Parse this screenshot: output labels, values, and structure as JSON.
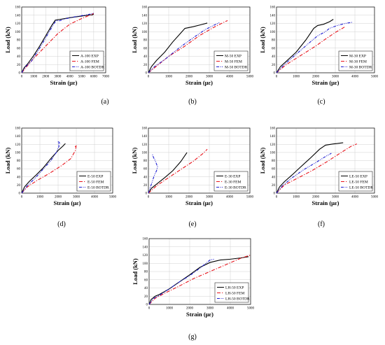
{
  "series_styles": {
    "EXP": {
      "color": "#000000",
      "dash": ""
    },
    "FEM": {
      "color": "#e8141c",
      "dash": "5,2,1.2,2"
    },
    "BOTDR": {
      "color": "#1e1ed2",
      "dash": "4,1.5,1,1.5,1,1.5"
    }
  },
  "chart_data": [
    {
      "type": "line",
      "panel_label": "(a)",
      "xlabel": "Strain (με)",
      "ylabel": "Load (kN)",
      "xlim": [
        0,
        7000
      ],
      "ylim": [
        0,
        160
      ],
      "xticks": [
        "0",
        "1000",
        "2000",
        "3000",
        "4000",
        "5000",
        "6000",
        "7000"
      ],
      "yticks": [
        "0",
        "20",
        "40",
        "60",
        "80",
        "100",
        "120",
        "140",
        "160"
      ],
      "series": [
        {
          "name": "A-100 EXP",
          "style": "EXP",
          "points": [
            [
              0,
              0
            ],
            [
              200,
              12
            ],
            [
              500,
              22
            ],
            [
              1000,
              42
            ],
            [
              1500,
              65
            ],
            [
              2000,
              90
            ],
            [
              2500,
              115
            ],
            [
              2800,
              128
            ],
            [
              3200,
              130
            ],
            [
              4000,
              134
            ],
            [
              5000,
              138
            ],
            [
              5500,
              140
            ],
            [
              5900,
              141
            ],
            [
              6000,
              143
            ]
          ]
        },
        {
          "name": "A-100 FEM",
          "style": "FEM",
          "points": [
            [
              0,
              0
            ],
            [
              500,
              18
            ],
            [
              1000,
              35
            ],
            [
              2000,
              65
            ],
            [
              3000,
              95
            ],
            [
              4000,
              118
            ],
            [
              5000,
              132
            ],
            [
              5500,
              138
            ],
            [
              6000,
              144
            ]
          ]
        },
        {
          "name": "A-100 BOTDR",
          "style": "BOTDR",
          "points": [
            [
              0,
              0
            ],
            [
              300,
              14
            ],
            [
              800,
              28
            ],
            [
              1500,
              60
            ],
            [
              2200,
              95
            ],
            [
              2700,
              120
            ],
            [
              2900,
              128
            ],
            [
              3100,
              126
            ],
            [
              3500,
              130
            ],
            [
              4200,
              135
            ],
            [
              5000,
              139
            ],
            [
              5600,
              142
            ],
            [
              6000,
              145
            ]
          ]
        }
      ]
    },
    {
      "type": "line",
      "panel_label": "(b)",
      "xlabel": "Strain (με)",
      "ylabel": "Load (kN)",
      "xlim": [
        0,
        5000
      ],
      "ylim": [
        0,
        160
      ],
      "xticks": [
        "0",
        "1000",
        "2000",
        "3000",
        "4000",
        "5000"
      ],
      "yticks": [
        "0",
        "20",
        "40",
        "60",
        "80",
        "100",
        "120",
        "140",
        "160"
      ],
      "series": [
        {
          "name": "M-50 EXP",
          "style": "EXP",
          "points": [
            [
              0,
              0
            ],
            [
              150,
              15
            ],
            [
              400,
              30
            ],
            [
              800,
              50
            ],
            [
              1200,
              75
            ],
            [
              1600,
              97
            ],
            [
              1800,
              108
            ],
            [
              2200,
              112
            ],
            [
              2600,
              117
            ],
            [
              2900,
              121
            ]
          ]
        },
        {
          "name": "M-50 FEM",
          "style": "FEM",
          "points": [
            [
              0,
              0
            ],
            [
              500,
              20
            ],
            [
              1000,
              40
            ],
            [
              1800,
              65
            ],
            [
              2500,
              90
            ],
            [
              3200,
              110
            ],
            [
              3600,
              120
            ],
            [
              3900,
              127
            ]
          ]
        },
        {
          "name": "M-50 BOTDR",
          "style": "BOTDR",
          "points": [
            [
              0,
              0
            ],
            [
              300,
              15
            ],
            [
              800,
              32
            ],
            [
              1500,
              60
            ],
            [
              2200,
              85
            ],
            [
              2800,
              105
            ],
            [
              3200,
              115
            ],
            [
              3500,
              122
            ]
          ]
        }
      ]
    },
    {
      "type": "line",
      "panel_label": "(c)",
      "xlabel": "Strain (με)",
      "ylabel": "Load (kN)",
      "xlim": [
        0,
        5000
      ],
      "ylim": [
        0,
        160
      ],
      "xticks": [
        "0",
        "1000",
        "2000",
        "3000",
        "4000",
        "5000"
      ],
      "yticks": [
        "0",
        "20",
        "40",
        "60",
        "80",
        "100",
        "120",
        "140",
        "160"
      ],
      "series": [
        {
          "name": "M-30 EXP",
          "style": "EXP",
          "points": [
            [
              0,
              0
            ],
            [
              200,
              15
            ],
            [
              500,
              28
            ],
            [
              1000,
              50
            ],
            [
              1500,
              80
            ],
            [
              1900,
              108
            ],
            [
              2100,
              115
            ],
            [
              2400,
              118
            ],
            [
              2700,
              124
            ],
            [
              2900,
              130
            ]
          ]
        },
        {
          "name": "M-30 FEM",
          "style": "FEM",
          "points": [
            [
              0,
              0
            ],
            [
              500,
              20
            ],
            [
              1000,
              35
            ],
            [
              1500,
              50
            ],
            [
              2000,
              65
            ],
            [
              2500,
              82
            ],
            [
              3000,
              98
            ],
            [
              3500,
              112
            ]
          ]
        },
        {
          "name": "M-30 BOTDR",
          "style": "BOTDR",
          "points": [
            [
              0,
              0
            ],
            [
              400,
              20
            ],
            [
              1000,
              45
            ],
            [
              1600,
              70
            ],
            [
              2100,
              90
            ],
            [
              2500,
              100
            ],
            [
              2700,
              108
            ],
            [
              3100,
              115
            ],
            [
              3500,
              120
            ],
            [
              3900,
              123
            ]
          ]
        }
      ]
    },
    {
      "type": "line",
      "panel_label": "(d)",
      "xlabel": "Strain (με)",
      "ylabel": "Load (kN)",
      "xlim": [
        0,
        5000
      ],
      "ylim": [
        0,
        160
      ],
      "xticks": [
        "0",
        "1000",
        "2000",
        "3000",
        "4000",
        "5000"
      ],
      "yticks": [
        "0",
        "20",
        "40",
        "60",
        "80",
        "100",
        "120",
        "140",
        "160"
      ],
      "series": [
        {
          "name": "E-50 EXP",
          "style": "EXP",
          "points": [
            [
              0,
              0
            ],
            [
              150,
              15
            ],
            [
              400,
              28
            ],
            [
              800,
              45
            ],
            [
              1200,
              63
            ],
            [
              1600,
              85
            ],
            [
              2000,
              105
            ],
            [
              2250,
              115
            ],
            [
              2400,
              122
            ]
          ]
        },
        {
          "name": "E-50 FEM",
          "style": "FEM",
          "points": [
            [
              0,
              0
            ],
            [
              300,
              15
            ],
            [
              800,
              30
            ],
            [
              1500,
              48
            ],
            [
              2200,
              68
            ],
            [
              2700,
              85
            ],
            [
              2950,
              105
            ],
            [
              3000,
              118
            ],
            [
              2900,
              112
            ]
          ]
        },
        {
          "name": "E-50 BOTDR",
          "style": "BOTDR",
          "points": [
            [
              0,
              0
            ],
            [
              300,
              18
            ],
            [
              700,
              35
            ],
            [
              1200,
              60
            ],
            [
              1600,
              80
            ],
            [
              1900,
              100
            ],
            [
              2050,
              115
            ],
            [
              2000,
              128
            ],
            [
              2100,
              122
            ]
          ]
        }
      ]
    },
    {
      "type": "line",
      "panel_label": "(e)",
      "xlabel": "Strain (με)",
      "ylabel": "Load (kN)",
      "xlim": [
        0,
        5000
      ],
      "ylim": [
        0,
        160
      ],
      "xticks": [
        "0",
        "1000",
        "2000",
        "3000",
        "4000",
        "5000"
      ],
      "yticks": [
        "0",
        "20",
        "40",
        "60",
        "80",
        "100",
        "120",
        "140",
        "160"
      ],
      "series": [
        {
          "name": "E-30 EXP",
          "style": "EXP",
          "points": [
            [
              0,
              0
            ],
            [
              150,
              12
            ],
            [
              400,
              22
            ],
            [
              800,
              38
            ],
            [
              1200,
              55
            ],
            [
              1600,
              78
            ],
            [
              1900,
              100
            ]
          ]
        },
        {
          "name": "E-30 FEM",
          "style": "FEM",
          "points": [
            [
              0,
              0
            ],
            [
              400,
              18
            ],
            [
              900,
              35
            ],
            [
              1500,
              55
            ],
            [
              2200,
              78
            ],
            [
              2700,
              98
            ],
            [
              2900,
              108
            ]
          ]
        },
        {
          "name": "E-30 BOTDR",
          "style": "BOTDR",
          "points": [
            [
              0,
              0
            ],
            [
              100,
              15
            ],
            [
              200,
              30
            ],
            [
              300,
              45
            ],
            [
              400,
              55
            ],
            [
              450,
              65
            ],
            [
              350,
              78
            ],
            [
              250,
              88
            ],
            [
              200,
              95
            ]
          ]
        }
      ]
    },
    {
      "type": "line",
      "panel_label": "(f)",
      "xlabel": "Strain (με)",
      "ylabel": "Load (kN)",
      "xlim": [
        0,
        5000
      ],
      "ylim": [
        0,
        160
      ],
      "xticks": [
        "0",
        "1000",
        "2000",
        "3000",
        "4000",
        "5000"
      ],
      "yticks": [
        "0",
        "20",
        "40",
        "60",
        "80",
        "100",
        "120",
        "140",
        "160"
      ],
      "series": [
        {
          "name": "LE-50 EXP",
          "style": "EXP",
          "points": [
            [
              0,
              0
            ],
            [
              150,
              15
            ],
            [
              400,
              28
            ],
            [
              800,
              45
            ],
            [
              1200,
              63
            ],
            [
              1700,
              85
            ],
            [
              2200,
              108
            ],
            [
              2500,
              118
            ],
            [
              2900,
              121
            ],
            [
              3100,
              122
            ],
            [
              3400,
              124
            ]
          ]
        },
        {
          "name": "LE-50 FEM",
          "style": "FEM",
          "points": [
            [
              0,
              0
            ],
            [
              400,
              20
            ],
            [
              1000,
              35
            ],
            [
              1800,
              55
            ],
            [
              2600,
              78
            ],
            [
              3300,
              100
            ],
            [
              3800,
              115
            ],
            [
              4100,
              121
            ]
          ]
        },
        {
          "name": "LE-50 BOTDR",
          "style": "BOTDR",
          "points": [
            [
              0,
              0
            ],
            [
              300,
              18
            ],
            [
              800,
              38
            ],
            [
              1400,
              58
            ],
            [
              2000,
              75
            ],
            [
              2500,
              90
            ],
            [
              2800,
              98
            ]
          ]
        }
      ]
    },
    {
      "type": "line",
      "panel_label": "(g)",
      "xlabel": "Strain (με)",
      "ylabel": "Load (kN)",
      "xlim": [
        0,
        5000
      ],
      "ylim": [
        0,
        160
      ],
      "xticks": [
        "0",
        "1000",
        "2000",
        "3000",
        "4000",
        "5000"
      ],
      "yticks": [
        "0",
        "20",
        "40",
        "60",
        "80",
        "100",
        "120",
        "140",
        "160"
      ],
      "series": [
        {
          "name": "LH-50 EXP",
          "style": "EXP",
          "points": [
            [
              0,
              0
            ],
            [
              100,
              12
            ],
            [
              300,
              20
            ],
            [
              500,
              24
            ],
            [
              1000,
              38
            ],
            [
              1500,
              55
            ],
            [
              2000,
              72
            ],
            [
              2500,
              90
            ],
            [
              3000,
              102
            ],
            [
              3500,
              108
            ],
            [
              4000,
              110
            ],
            [
              4500,
              113
            ],
            [
              4900,
              116
            ]
          ]
        },
        {
          "name": "LH-50 FEM",
          "style": "FEM",
          "points": [
            [
              0,
              0
            ],
            [
              300,
              15
            ],
            [
              800,
              28
            ],
            [
              1500,
              45
            ],
            [
              2200,
              63
            ],
            [
              3000,
              80
            ],
            [
              3800,
              97
            ],
            [
              4500,
              112
            ],
            [
              5000,
              120
            ]
          ]
        },
        {
          "name": "LH-50 BOTDR",
          "style": "BOTDR",
          "points": [
            [
              0,
              0
            ],
            [
              200,
              14
            ],
            [
              500,
              22
            ],
            [
              1000,
              38
            ],
            [
              1500,
              55
            ],
            [
              2000,
              70
            ],
            [
              2500,
              88
            ],
            [
              3000,
              108
            ],
            [
              3200,
              110
            ]
          ]
        }
      ]
    }
  ]
}
